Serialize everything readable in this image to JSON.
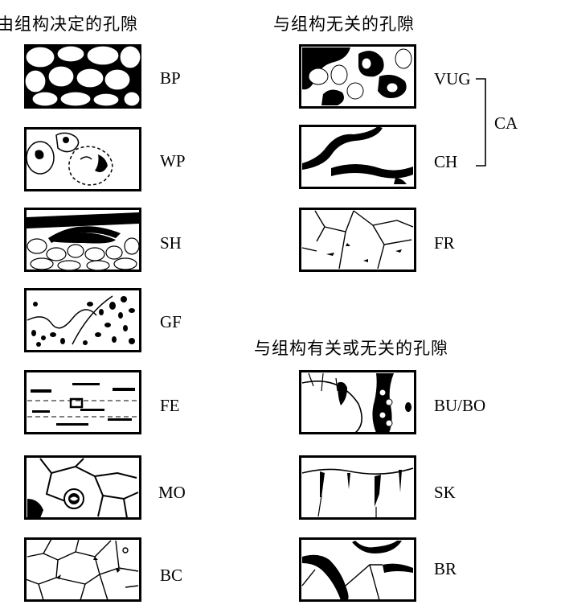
{
  "headings": {
    "texture_controlled": "由组构决定的孔隙",
    "not_texture_controlled": "与组构无关的孔隙",
    "texture_or_not": "与组构有关或无关的孔隙"
  },
  "left_column": [
    {
      "code": "BP",
      "icon": "interparticle-pore-icon"
    },
    {
      "code": "WP",
      "icon": "intraparticle-pore-icon"
    },
    {
      "code": "SH",
      "icon": "shelter-pore-icon"
    },
    {
      "code": "GF",
      "icon": "growth-framework-pore-icon"
    },
    {
      "code": "FE",
      "icon": "fenestral-pore-icon"
    },
    {
      "code": "MO",
      "icon": "moldic-pore-icon"
    },
    {
      "code": "BC",
      "icon": "intercrystal-pore-icon"
    }
  ],
  "right_top": [
    {
      "code": "VUG",
      "icon": "vug-pore-icon"
    },
    {
      "code": "CH",
      "icon": "channel-pore-icon"
    },
    {
      "code": "FR",
      "icon": "fracture-pore-icon"
    }
  ],
  "cavern_group_label": "CA",
  "right_bottom": [
    {
      "code": "BU/BO",
      "icon": "burrow-boring-pore-icon"
    },
    {
      "code": "SK",
      "icon": "shrinkage-pore-icon"
    },
    {
      "code": "BR",
      "icon": "breccia-pore-icon"
    }
  ]
}
